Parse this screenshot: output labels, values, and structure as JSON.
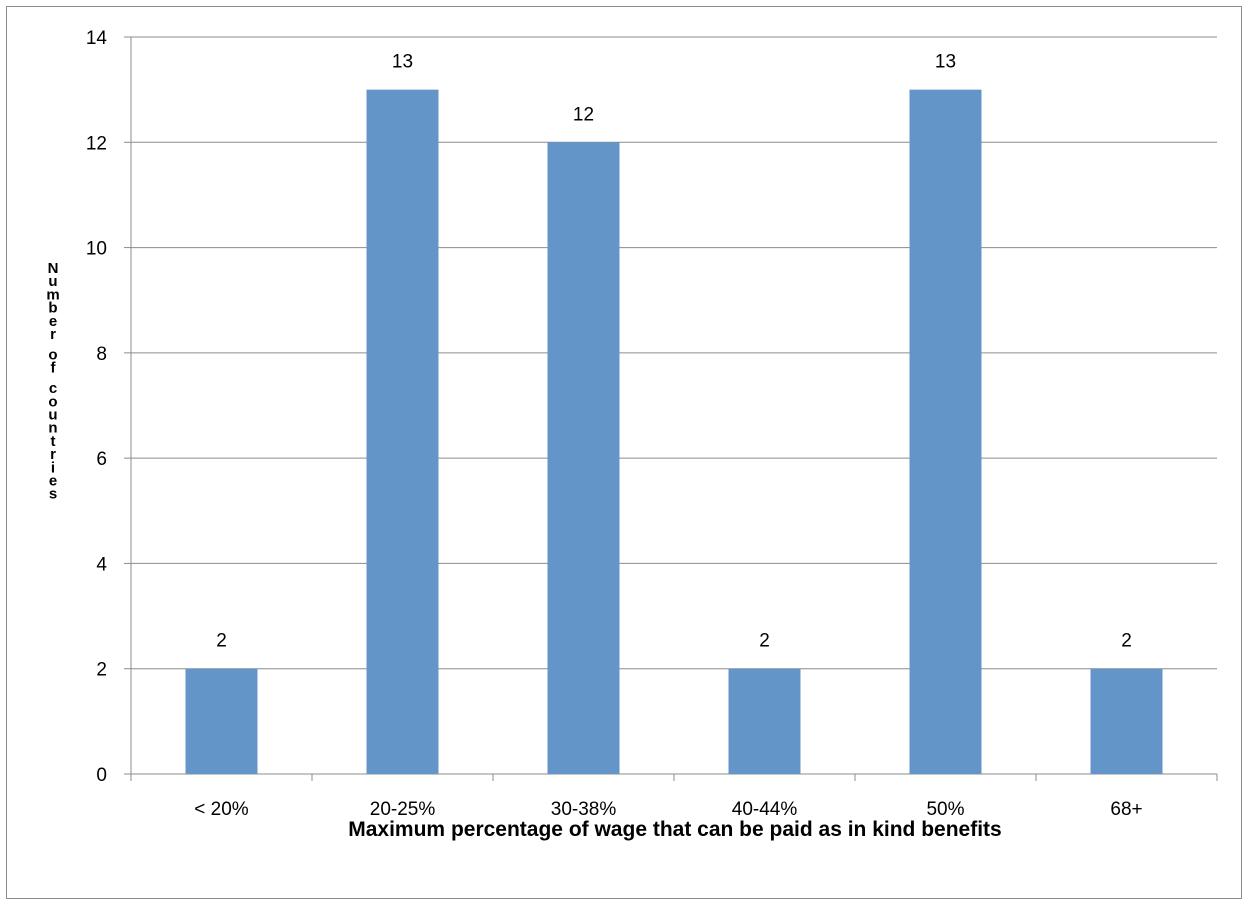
{
  "chart_data": {
    "type": "bar",
    "categories": [
      "< 20%",
      "20-25%",
      "30-38%",
      "40-44%",
      "50%",
      "68+"
    ],
    "values": [
      2,
      13,
      12,
      2,
      13,
      2
    ],
    "data_labels": [
      "2",
      "13",
      "12",
      "2",
      "13",
      "2"
    ],
    "xlabel": "Maximum percentage of wage that can be paid as in kind benefits",
    "ylabel": "Number of countries",
    "ylim": [
      0,
      14
    ],
    "yticks": [
      "0",
      "2",
      "4",
      "6",
      "8",
      "10",
      "12",
      "14"
    ],
    "grid": true,
    "legend": "none",
    "colors": {
      "bar": "#6495c9",
      "grid": "#8c8c8c"
    }
  }
}
